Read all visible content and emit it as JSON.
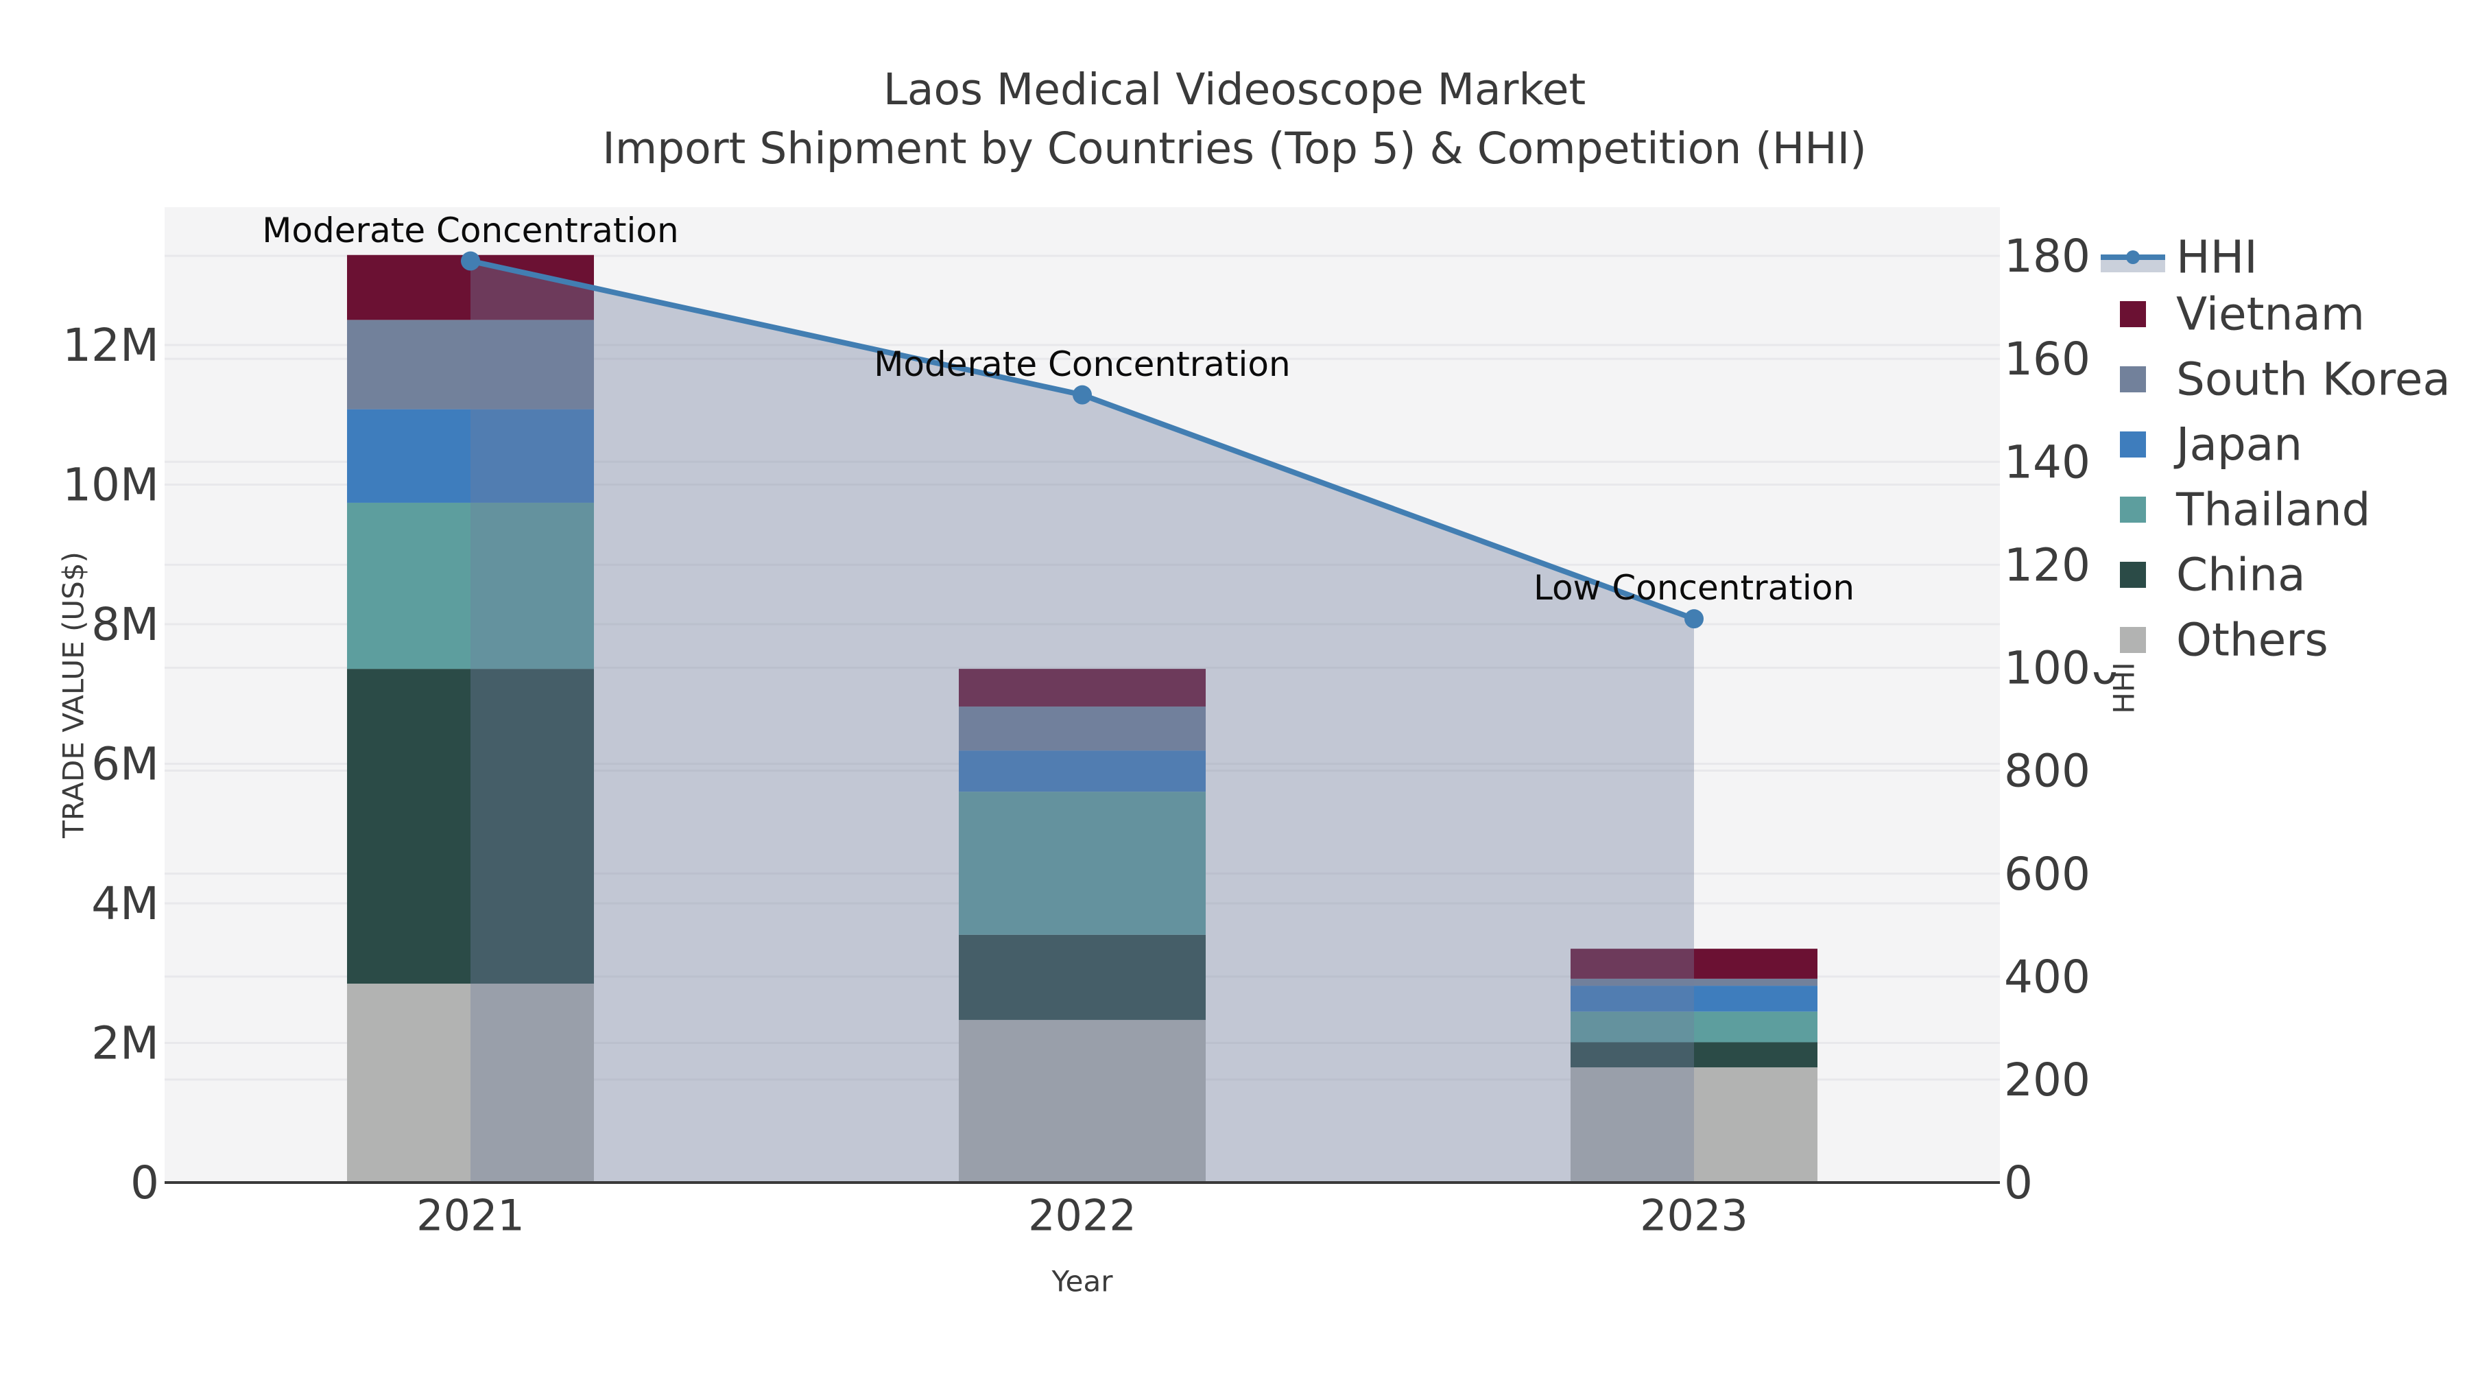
{
  "title": {
    "line1": "Laos Medical Videoscope Market",
    "line2": "Import Shipment by Countries (Top 5) & Competition (HHI)"
  },
  "axes": {
    "x": {
      "label": "Year",
      "ticks": [
        "2021",
        "2022",
        "2023"
      ]
    },
    "y_left": {
      "label": "TRADE VALUE (US$)",
      "ticks": [
        "0",
        "2M",
        "4M",
        "6M",
        "8M",
        "10M",
        "12M"
      ],
      "tick_values": [
        0,
        2000000,
        4000000,
        6000000,
        8000000,
        10000000,
        12000000
      ],
      "range": [
        0,
        13975000
      ]
    },
    "y_right": {
      "label": "HHI",
      "ticks": [
        "0",
        "200",
        "400",
        "600",
        "800",
        "1000",
        "1200",
        "1400",
        "1600",
        "1800"
      ],
      "tick_values": [
        0,
        200,
        400,
        600,
        800,
        1000,
        1200,
        1400,
        1600,
        1800
      ],
      "range": [
        0,
        1896
      ]
    }
  },
  "legend": {
    "items": [
      {
        "label": "HHI",
        "type": "line",
        "color": "#427eb2"
      },
      {
        "label": "Vietnam",
        "type": "swatch",
        "color": "#6b1133"
      },
      {
        "label": "South Korea",
        "type": "swatch",
        "color": "#72819b"
      },
      {
        "label": "Japan",
        "type": "swatch",
        "color": "#3e7dbd"
      },
      {
        "label": "Thailand",
        "type": "swatch",
        "color": "#5d9e9e"
      },
      {
        "label": "China",
        "type": "swatch",
        "color": "#2b4b47"
      },
      {
        "label": "Others",
        "type": "swatch",
        "color": "#b2b3b2"
      }
    ]
  },
  "annotations": [
    {
      "text": "Moderate Concentration",
      "category": "2021"
    },
    {
      "text": "Moderate Concentration",
      "category": "2022"
    },
    {
      "text": "Low Concentration",
      "category": "2023"
    }
  ],
  "colors": {
    "plot_bg": "#f4f4f5",
    "grid": "#e8e8eb",
    "axis_line": "#3a3a3a",
    "hhi_line": "#427eb2",
    "hhi_area_fill": "rgba(113,127,158,0.38)",
    "text": "#3c3c3c"
  },
  "chart_data": {
    "type": "bar",
    "subtype": "stacked-bars-with-line",
    "categories": [
      "2021",
      "2022",
      "2023"
    ],
    "series": [
      {
        "name": "Others",
        "color": "#b2b3b2",
        "values": [
          2850000,
          2330000,
          1650000
        ]
      },
      {
        "name": "China",
        "color": "#2b4b47",
        "values": [
          4510000,
          1220000,
          360000
        ]
      },
      {
        "name": "Thailand",
        "color": "#5d9e9e",
        "values": [
          2380000,
          2050000,
          440000
        ]
      },
      {
        "name": "Japan",
        "color": "#3e7dbd",
        "values": [
          1340000,
          590000,
          370000
        ]
      },
      {
        "name": "South Korea",
        "color": "#72819b",
        "values": [
          1280000,
          630000,
          100000
        ]
      },
      {
        "name": "Vietnam",
        "color": "#6b1133",
        "values": [
          930000,
          540000,
          430000
        ]
      }
    ],
    "stack_totals": [
      13290000,
      7360000,
      3350000
    ],
    "line_series": {
      "name": "HHI",
      "axis": "right",
      "values": [
        1790,
        1530,
        1095
      ],
      "area_under_line": true
    },
    "title": "Laos Medical Videoscope Market",
    "subtitle": "Import Shipment by Countries (Top 5) & Competition (HHI)",
    "xlabel": "Year",
    "ylabel_left": "TRADE VALUE (US$)",
    "ylabel_right": "HHI",
    "ylim_left": [
      0,
      13975000
    ],
    "ylim_right": [
      0,
      1896
    ],
    "grid": true,
    "legend_position": "right"
  }
}
